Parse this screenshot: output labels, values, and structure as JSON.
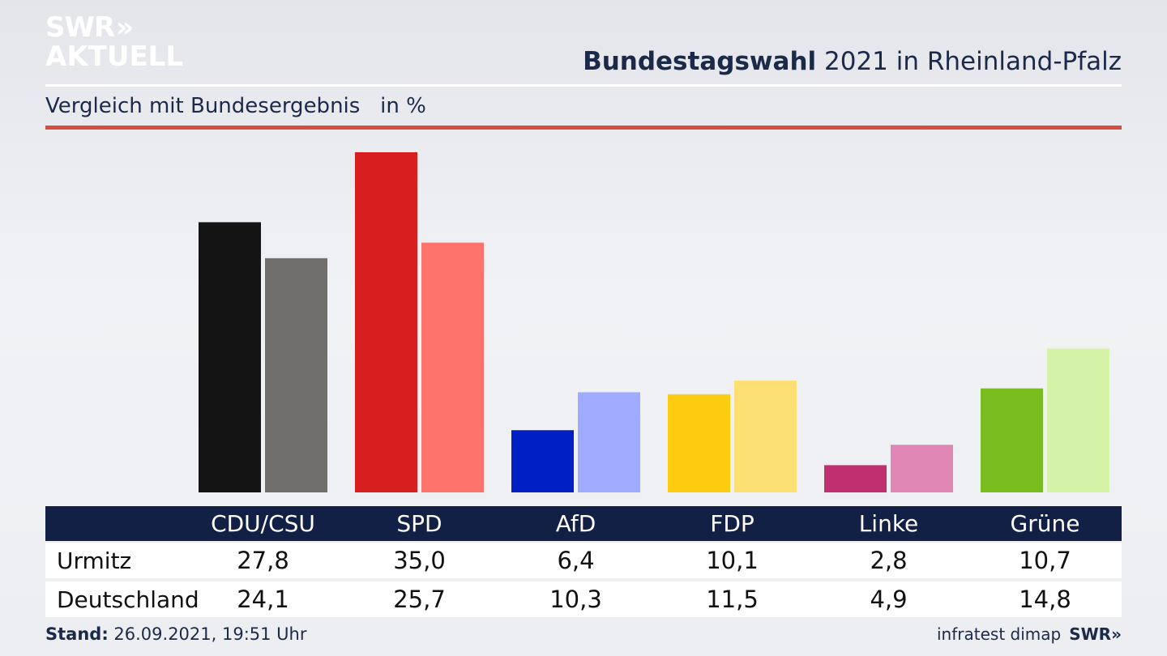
{
  "logo": {
    "line1": "SWR",
    "chevrons": "»",
    "line2": "AKTUELL"
  },
  "header": {
    "title_bold": "Bundestagswahl",
    "title_rest": " 2021 in Rheinland-Pfalz",
    "subtitle": "Vergleich mit Bundesergebnis   in %"
  },
  "chart_data": {
    "type": "bar",
    "title": "Bundestagswahl 2021 in Rheinland-Pfalz",
    "subtitle": "Vergleich mit Bundesergebnis   in %",
    "categories": [
      "CDU/CSU",
      "SPD",
      "AfD",
      "FDP",
      "Linke",
      "Grüne"
    ],
    "series": [
      {
        "name": "Urmitz",
        "values": [
          27.8,
          35.0,
          6.4,
          10.1,
          2.8,
          10.7
        ],
        "colors": [
          "#141414",
          "#d81f1f",
          "#0020c4",
          "#fdcb0f",
          "#c0306e",
          "#78bc1e"
        ]
      },
      {
        "name": "Deutschland",
        "values": [
          24.1,
          25.7,
          10.3,
          11.5,
          4.9,
          14.8
        ],
        "colors": [
          "#706f6d",
          "#fe746d",
          "#9eabfe",
          "#fde073",
          "#e087b6",
          "#d5f3a7"
        ]
      }
    ],
    "ylim": [
      0,
      35.0
    ],
    "grid": false
  },
  "table": {
    "headers": [
      "CDU/CSU",
      "SPD",
      "AfD",
      "FDP",
      "Linke",
      "Grüne"
    ],
    "rows": [
      {
        "label": "Urmitz",
        "values": [
          "27,8",
          "35,0",
          "6,4",
          "10,1",
          "2,8",
          "10,7"
        ]
      },
      {
        "label": "Deutschland",
        "values": [
          "24,1",
          "25,7",
          "10,3",
          "11,5",
          "4,9",
          "14,8"
        ]
      }
    ]
  },
  "footer": {
    "stand_label": "Stand:",
    "stand_value": " 26.09.2021, 19:51 Uhr",
    "source": "infratest dimap",
    "brand": "SWR»"
  }
}
